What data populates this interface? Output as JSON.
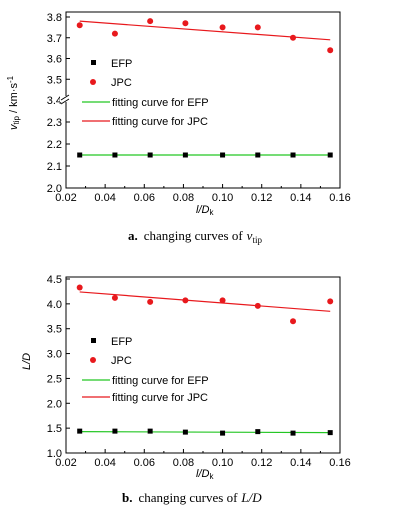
{
  "chart_data": [
    {
      "type": "scatter",
      "xlabel_main": "l/D",
      "xlabel_sub": "k",
      "ylabel_main": "v",
      "ylabel_sub": "tip",
      "ylabel_unit": " / km·s",
      "ylabel_sup": "-1",
      "xlim": [
        0.02,
        0.16
      ],
      "x_ticks": [
        "0.02",
        "0.04",
        "0.06",
        "0.08",
        "0.10",
        "0.12",
        "0.14",
        "0.16"
      ],
      "y_ticks_upper": [
        "3.4",
        "3.5",
        "3.6",
        "3.7",
        "3.8"
      ],
      "y_ticks_lower": [
        "2.0",
        "2.1",
        "2.2",
        "2.3"
      ],
      "axis_break": true,
      "legend": [
        "EFP",
        "JPC",
        "fitting curve for EFP",
        "fitting curve for JPC"
      ],
      "caption_letter": "a.",
      "caption_text": "changing curves of",
      "caption_var": "v",
      "caption_sub": "tip",
      "x": [
        0.027,
        0.045,
        0.063,
        0.081,
        0.1,
        0.118,
        0.136,
        0.155
      ],
      "series": [
        {
          "name": "EFP",
          "values": [
            2.15,
            2.15,
            2.15,
            2.15,
            2.15,
            2.15,
            2.15,
            2.15
          ]
        },
        {
          "name": "JPC",
          "values": [
            3.76,
            3.72,
            3.78,
            3.77,
            3.75,
            3.75,
            3.7,
            3.64
          ]
        }
      ],
      "fits": [
        {
          "name": "fitting curve for EFP",
          "from": [
            0.027,
            2.15
          ],
          "to": [
            0.155,
            2.15
          ]
        },
        {
          "name": "fitting curve for JPC",
          "from": [
            0.027,
            3.78
          ],
          "to": [
            0.155,
            3.69
          ]
        }
      ],
      "colors": {
        "EFP": "#000000",
        "JPC": "#e8191d",
        "fit_EFP": "#23c623",
        "fit_JPC": "#e8191d"
      }
    },
    {
      "type": "scatter",
      "xlabel_main": "l/D",
      "xlabel_sub": "k",
      "ylabel_main": "L/D",
      "xlim": [
        0.02,
        0.16
      ],
      "ylim": [
        1.0,
        4.5
      ],
      "x_ticks": [
        "0.02",
        "0.04",
        "0.06",
        "0.08",
        "0.10",
        "0.12",
        "0.14",
        "0.16"
      ],
      "y_ticks": [
        "1.0",
        "1.5",
        "2.0",
        "2.5",
        "3.0",
        "3.5",
        "4.0",
        "4.5"
      ],
      "legend": [
        "EFP",
        "JPC",
        "fitting curve for EFP",
        "fitting curve for JPC"
      ],
      "caption_letter": "b.",
      "caption_text": "changing curves of",
      "caption_var": "L/D",
      "x": [
        0.027,
        0.045,
        0.063,
        0.081,
        0.1,
        0.118,
        0.136,
        0.155
      ],
      "series": [
        {
          "name": "EFP",
          "values": [
            1.44,
            1.44,
            1.44,
            1.42,
            1.4,
            1.43,
            1.4,
            1.41
          ]
        },
        {
          "name": "JPC",
          "values": [
            4.33,
            4.12,
            4.04,
            4.07,
            4.07,
            3.96,
            3.65,
            4.05
          ]
        }
      ],
      "fits": [
        {
          "name": "fitting curve for EFP",
          "from": [
            0.027,
            1.43
          ],
          "to": [
            0.155,
            1.41
          ]
        },
        {
          "name": "fitting curve for JPC",
          "from": [
            0.027,
            4.24
          ],
          "to": [
            0.155,
            3.85
          ]
        }
      ],
      "colors": {
        "EFP": "#000000",
        "JPC": "#e8191d",
        "fit_EFP": "#23c623",
        "fit_JPC": "#e8191d"
      }
    }
  ]
}
